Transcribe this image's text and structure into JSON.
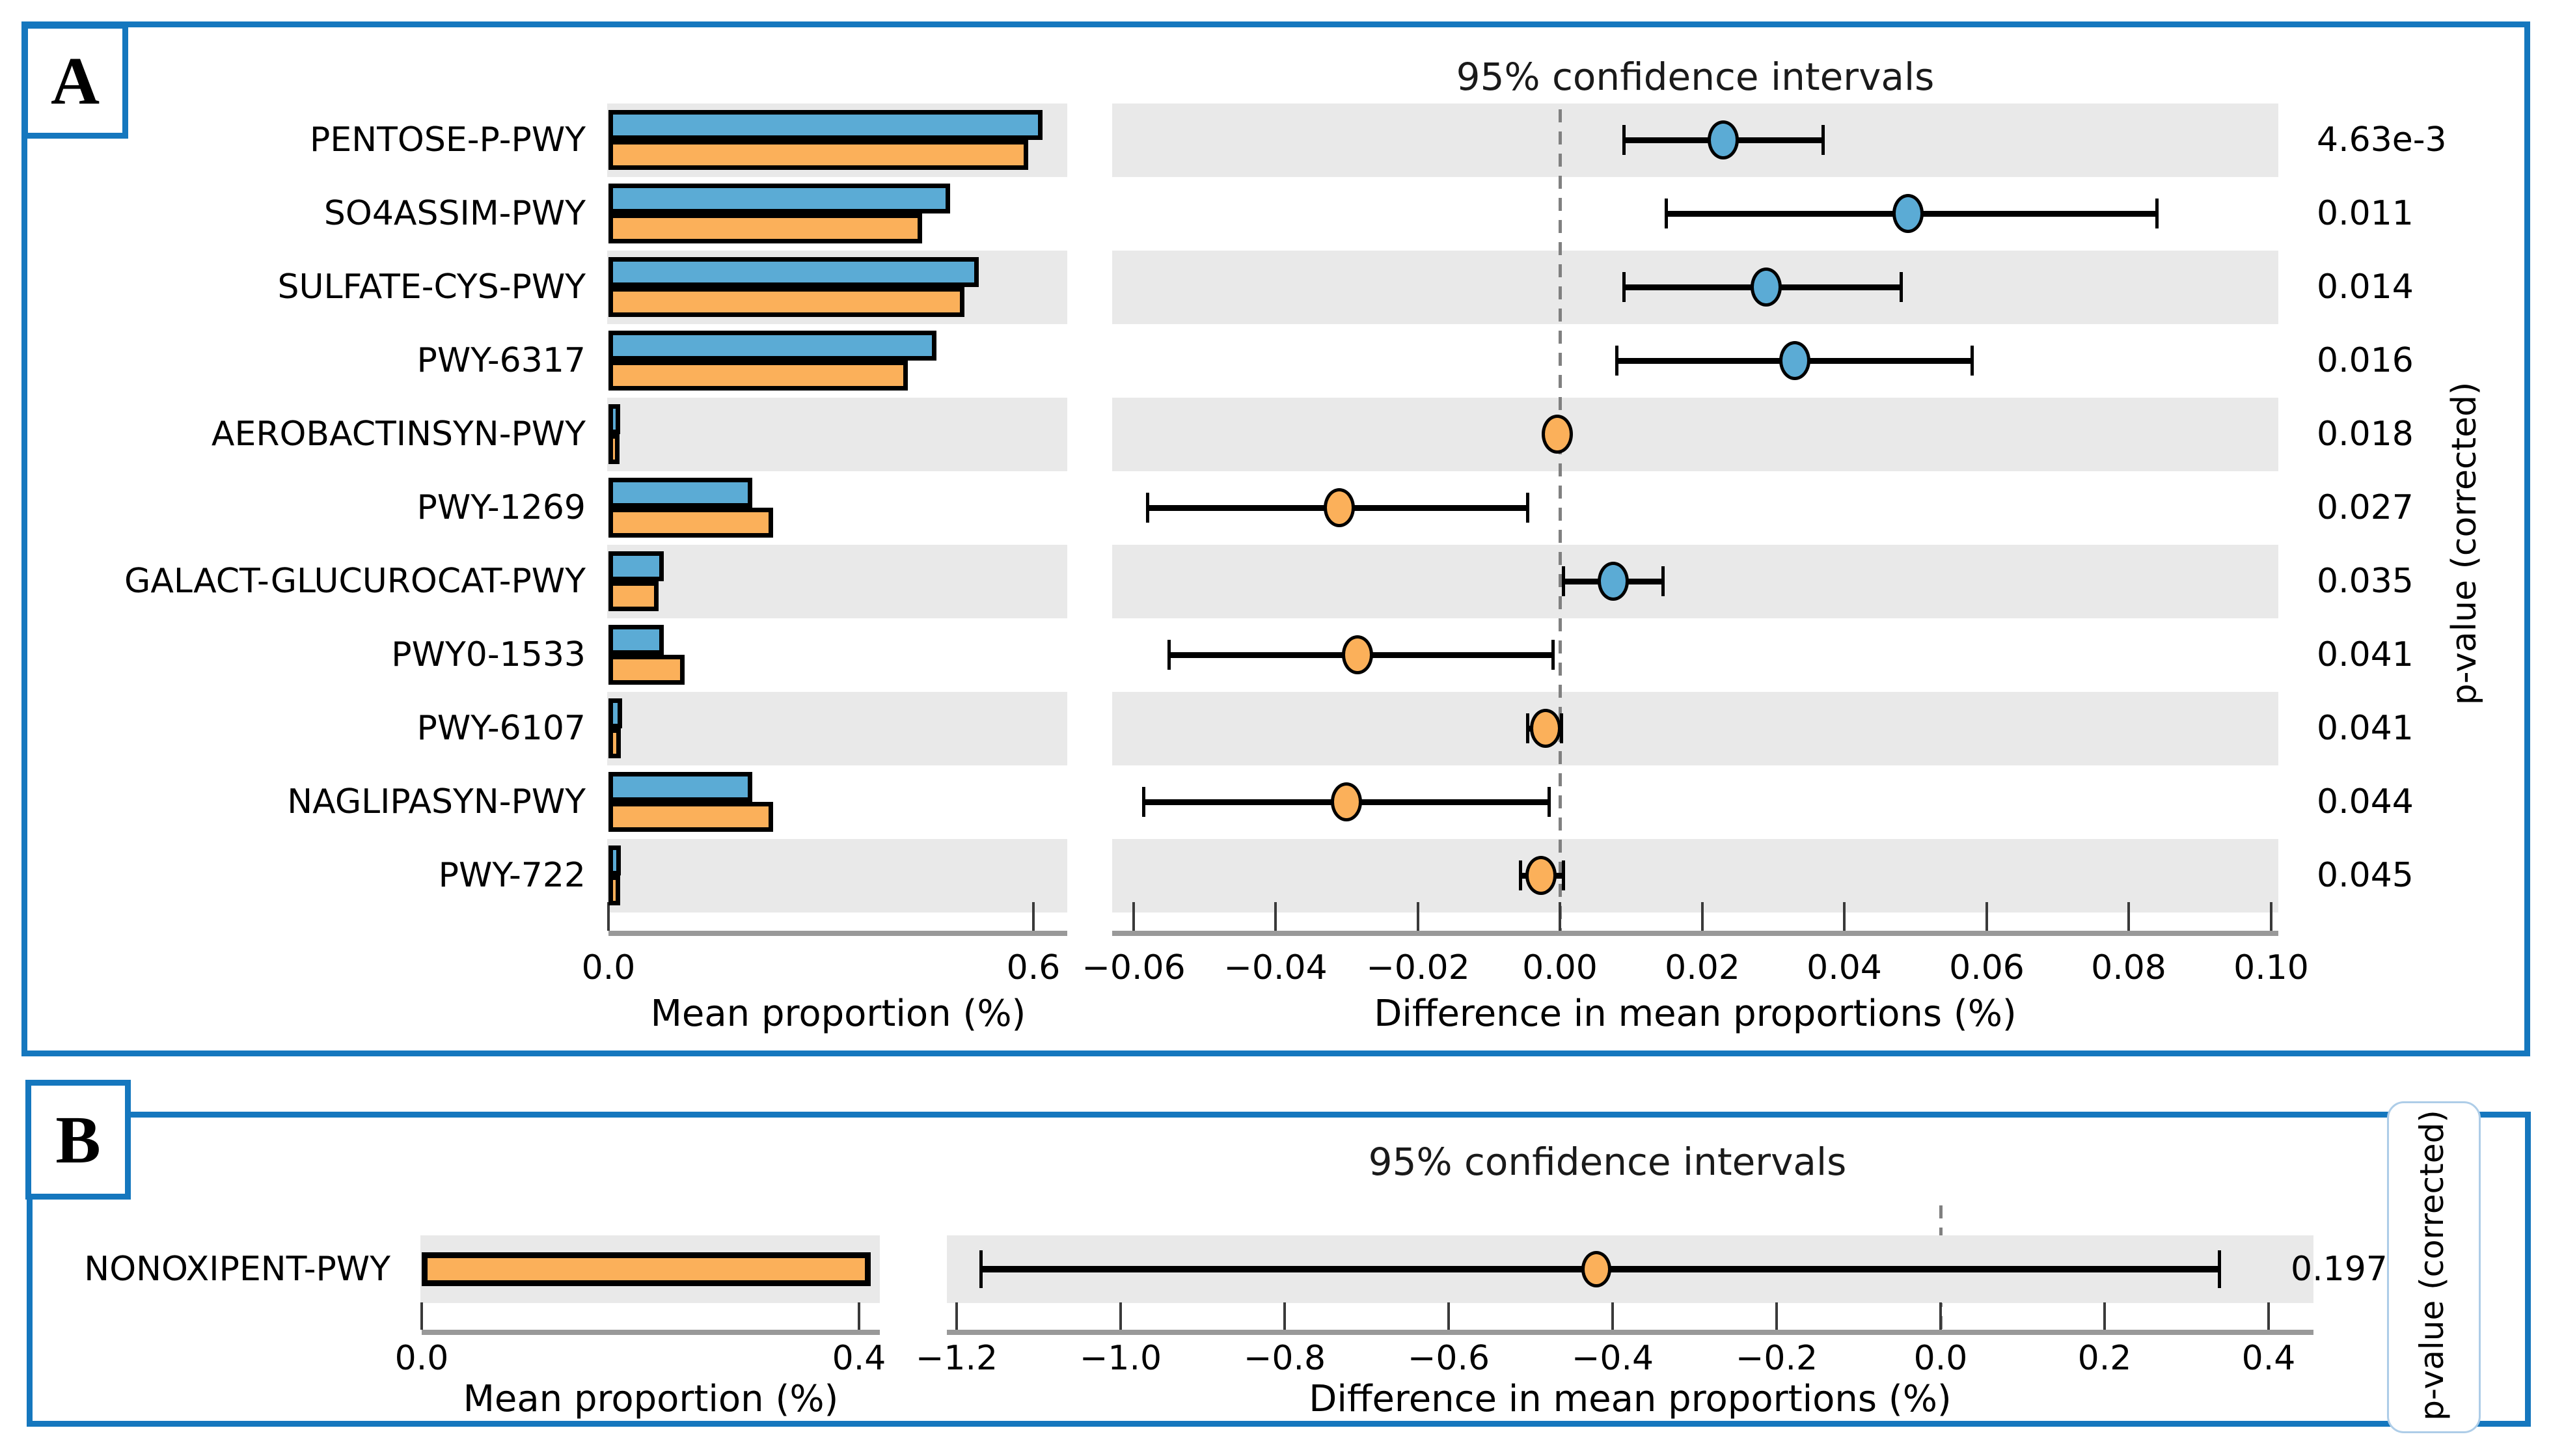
{
  "colors": {
    "group1_blue": "#5BABD5",
    "group2_orange": "#FBB05A",
    "band_gray": "#E9E9E9",
    "axis_gray": "#999999",
    "panel_border_blue": "#1577BE",
    "dashed_line_gray": "#808080",
    "bar_edge_black": "#000000"
  },
  "chart_data": [
    {
      "type": "extended_error_bar",
      "panel_label": "A",
      "title": "95% confidence intervals",
      "bar_xlabel": "Mean proportion (%)",
      "diff_xlabel": "Difference in mean proportions (%)",
      "pvalue_label": "p-value (corrected)",
      "legend_position": "none",
      "bar_axis": {
        "min": 0.0,
        "max": 0.648,
        "ticks": [
          0.0,
          0.6
        ],
        "tick_labels": [
          "0.0",
          "0.6"
        ]
      },
      "diff_axis": {
        "min": -0.063,
        "max": 0.101,
        "ticks": [
          -0.06,
          -0.04,
          -0.02,
          0.0,
          0.02,
          0.04,
          0.06,
          0.08,
          0.1
        ],
        "tick_labels": [
          "−0.06",
          "−0.04",
          "−0.02",
          "0.00",
          "0.02",
          "0.04",
          "0.06",
          "0.08",
          "0.10"
        ]
      },
      "zero_line": 0.0,
      "rows": [
        {
          "category": "PENTOSE-P-PWY",
          "group1_mean": 0.6,
          "group2_mean": 0.58,
          "diff": 0.023,
          "ci_low": 0.009,
          "ci_high": 0.037,
          "dot_color": "blue",
          "p_value": "4.63e-3",
          "shaded": true
        },
        {
          "category": "SO4ASSIM-PWY",
          "group1_mean": 0.47,
          "group2_mean": 0.43,
          "diff": 0.049,
          "ci_low": 0.015,
          "ci_high": 0.084,
          "dot_color": "blue",
          "p_value": "0.011",
          "shaded": false
        },
        {
          "category": "SULFATE-CYS-PWY",
          "group1_mean": 0.51,
          "group2_mean": 0.49,
          "diff": 0.029,
          "ci_low": 0.009,
          "ci_high": 0.048,
          "dot_color": "blue",
          "p_value": "0.014",
          "shaded": true
        },
        {
          "category": "PWY-6317",
          "group1_mean": 0.45,
          "group2_mean": 0.41,
          "diff": 0.033,
          "ci_low": 0.008,
          "ci_high": 0.058,
          "dot_color": "blue",
          "p_value": "0.016",
          "shaded": false
        },
        {
          "category": "AEROBACTINSYN-PWY",
          "group1_mean": 0.004,
          "group2_mean": 0.003,
          "diff": -0.0004,
          "ci_low": -0.001,
          "ci_high": 0.0004,
          "dot_color": "orange",
          "p_value": "0.018",
          "shaded": true
        },
        {
          "category": "PWY-1269",
          "group1_mean": 0.19,
          "group2_mean": 0.22,
          "diff": -0.031,
          "ci_low": -0.058,
          "ci_high": -0.0045,
          "dot_color": "orange",
          "p_value": "0.027",
          "shaded": false
        },
        {
          "category": "GALACT-GLUCUROCAT-PWY",
          "group1_mean": 0.065,
          "group2_mean": 0.058,
          "diff": 0.0075,
          "ci_low": 0.0005,
          "ci_high": 0.0145,
          "dot_color": "blue",
          "p_value": "0.035",
          "shaded": true
        },
        {
          "category": "PWY0-1533",
          "group1_mean": 0.065,
          "group2_mean": 0.095,
          "diff": -0.0285,
          "ci_low": -0.055,
          "ci_high": -0.001,
          "dot_color": "orange",
          "p_value": "0.041",
          "shaded": false
        },
        {
          "category": "PWY-6107",
          "group1_mean": 0.006,
          "group2_mean": 0.005,
          "diff": -0.002,
          "ci_low": -0.0045,
          "ci_high": 0.0002,
          "dot_color": "orange",
          "p_value": "0.041",
          "shaded": true
        },
        {
          "category": "NAGLIPASYN-PWY",
          "group1_mean": 0.19,
          "group2_mean": 0.22,
          "diff": -0.03,
          "ci_low": -0.0585,
          "ci_high": -0.0015,
          "dot_color": "orange",
          "p_value": "0.044",
          "shaded": false
        },
        {
          "category": "PWY-722",
          "group1_mean": 0.005,
          "group2_mean": 0.004,
          "diff": -0.0027,
          "ci_low": -0.0055,
          "ci_high": 0.0005,
          "dot_color": "orange",
          "p_value": "0.045",
          "shaded": true
        }
      ]
    },
    {
      "type": "extended_error_bar",
      "panel_label": "B",
      "title": "95% confidence intervals",
      "bar_xlabel": "Mean proportion (%)",
      "diff_xlabel": "Difference in mean proportions (%)",
      "pvalue_label": "p-value (corrected)",
      "legend_position": "none",
      "bar_axis": {
        "min": 0.0,
        "max": 0.42,
        "ticks": [
          0.0,
          0.4
        ],
        "tick_labels": [
          "0.0",
          "0.4"
        ]
      },
      "diff_axis": {
        "min": -1.21,
        "max": 0.43,
        "ticks": [
          -1.2,
          -1.0,
          -0.8,
          -0.6,
          -0.4,
          -0.2,
          0.0,
          0.2,
          0.4
        ],
        "tick_labels": [
          "−1.2",
          "−1.0",
          "−0.8",
          "−0.6",
          "−0.4",
          "−0.2",
          "0.0",
          "0.2",
          "0.4"
        ]
      },
      "zero_line": 0.0,
      "rows": [
        {
          "category": "NONOXIPENT-PWY",
          "group2_mean": 0.4,
          "diff": -0.42,
          "ci_low": -1.17,
          "ci_high": 0.34,
          "dot_color": "orange",
          "p_value": "0.197",
          "shaded": true
        }
      ]
    }
  ]
}
